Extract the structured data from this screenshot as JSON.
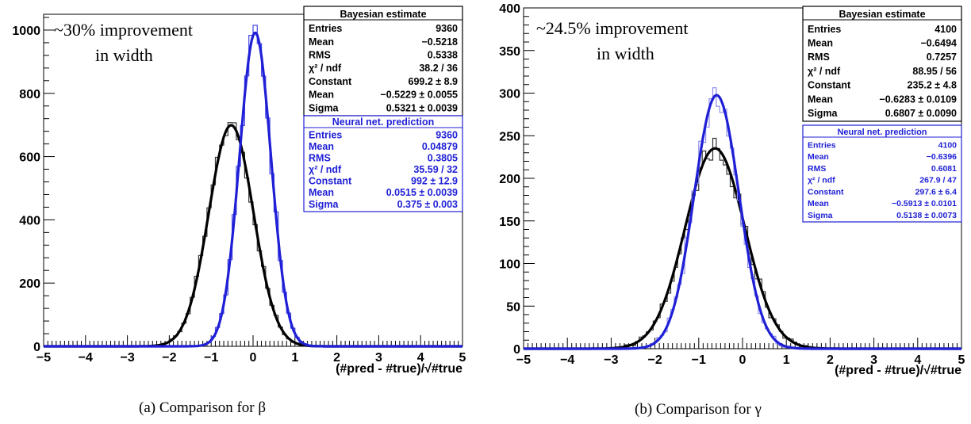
{
  "chart_data": [
    {
      "type": "histogram",
      "panel": "a",
      "caption": "(a) Comparison for β",
      "xlabel": "(#pred - #true)/√#true",
      "ylabel": "",
      "xlim": [
        -5,
        5
      ],
      "ylim": [
        0,
        1050
      ],
      "yticks": [
        0,
        200,
        400,
        600,
        800,
        1000
      ],
      "xticks": [
        -5,
        -4,
        -3,
        -2,
        -1,
        0,
        1,
        2,
        3,
        4,
        5
      ],
      "annotation": [
        "~30% improvement",
        "in width"
      ],
      "series": [
        {
          "name": "Bayesian estimate",
          "color": "#000000",
          "stats": [
            {
              "label": "Entries",
              "value": "9360"
            },
            {
              "label": "Mean",
              "value": "−0.5218"
            },
            {
              "label": "RMS",
              "value": "0.5338"
            },
            {
              "label": "χ² / ndf",
              "value": "38.2 / 36"
            },
            {
              "label": "Constant",
              "value": "699.2 ± 8.9"
            },
            {
              "label": "Mean",
              "value": "−0.5229 ± 0.0055"
            },
            {
              "label": "Sigma",
              "value": "0.5321 ± 0.0039"
            }
          ],
          "fit": {
            "constant": 699.2,
            "mean": -0.5229,
            "sigma": 0.5321
          }
        },
        {
          "name": "Neural net. prediction",
          "color": "#1f1fd6",
          "stats": [
            {
              "label": "Entries",
              "value": "9360"
            },
            {
              "label": "Mean",
              "value": "0.04879"
            },
            {
              "label": "RMS",
              "value": "0.3805"
            },
            {
              "label": "χ² / ndf",
              "value": "35.59 / 32"
            },
            {
              "label": "Constant",
              "value": "992 ± 12.9"
            },
            {
              "label": "Mean",
              "value": "0.0515 ± 0.0039"
            },
            {
              "label": "Sigma",
              "value": "0.375 ± 0.003"
            }
          ],
          "fit": {
            "constant": 992,
            "mean": 0.0515,
            "sigma": 0.375
          }
        }
      ]
    },
    {
      "type": "histogram",
      "panel": "b",
      "caption": "(b) Comparison for γ",
      "xlabel": "(#pred - #true)/√#true",
      "ylabel": "",
      "xlim": [
        -5,
        5
      ],
      "ylim": [
        0,
        400
      ],
      "yticks": [
        0,
        50,
        100,
        150,
        200,
        250,
        300,
        350,
        400
      ],
      "xticks": [
        -5,
        -4,
        -3,
        -2,
        -1,
        0,
        1,
        2,
        3,
        4,
        5
      ],
      "annotation": [
        "~24.5% improvement",
        "in width"
      ],
      "series": [
        {
          "name": "Bayesian estimate",
          "color": "#000000",
          "stats": [
            {
              "label": "Entries",
              "value": "4100"
            },
            {
              "label": "Mean",
              "value": "−0.6494"
            },
            {
              "label": "RMS",
              "value": "0.7257"
            },
            {
              "label": "χ² / ndf",
              "value": "88.95 / 56"
            },
            {
              "label": "Constant",
              "value": "235.2 ± 4.8"
            },
            {
              "label": "Mean",
              "value": "−0.6283 ± 0.0109"
            },
            {
              "label": "Sigma",
              "value": "0.6807 ± 0.0090"
            }
          ],
          "fit": {
            "constant": 235.2,
            "mean": -0.6283,
            "sigma": 0.6807
          }
        },
        {
          "name": "Neural net. prediction",
          "color": "#1f1fd6",
          "stats": [
            {
              "label": "Entries",
              "value": "4100"
            },
            {
              "label": "Mean",
              "value": "−0.6396"
            },
            {
              "label": "RMS",
              "value": "0.6081"
            },
            {
              "label": "χ² / ndf",
              "value": "267.9 / 47"
            },
            {
              "label": "Constant",
              "value": "297.6 ± 6.4"
            },
            {
              "label": "Mean",
              "value": "−0.5913 ± 0.0101"
            },
            {
              "label": "Sigma",
              "value": "0.5138 ± 0.0073"
            }
          ],
          "fit": {
            "constant": 297.6,
            "mean": -0.5913,
            "sigma": 0.5138
          }
        }
      ]
    }
  ]
}
